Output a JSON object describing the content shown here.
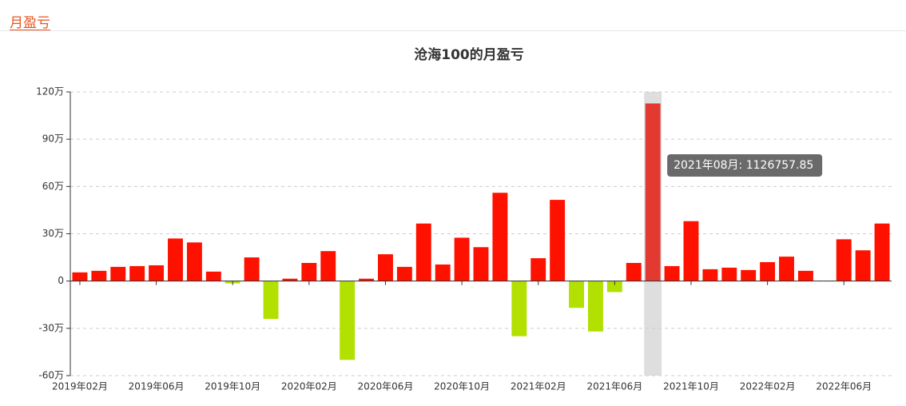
{
  "header": {
    "tab": "月盈亏"
  },
  "chart_data": {
    "type": "bar",
    "title": "沧海100的月盈亏",
    "categories": [
      "2019年02月",
      null,
      null,
      null,
      "2019年06月",
      null,
      null,
      null,
      "2019年10月",
      null,
      null,
      null,
      "2020年02月",
      null,
      null,
      null,
      "2020年06月",
      null,
      null,
      null,
      "2020年10月",
      null,
      null,
      null,
      "2021年02月",
      null,
      null,
      null,
      "2021年06月",
      null,
      null,
      null,
      "2021年10月",
      null,
      null,
      null,
      "2022年02月",
      null,
      null,
      null,
      "2022年06月",
      null,
      null
    ],
    "values": [
      55000,
      65000,
      90000,
      95000,
      100000,
      270000,
      245000,
      60000,
      -15000,
      150000,
      -240000,
      15000,
      115000,
      190000,
      -500000,
      15000,
      170000,
      90000,
      365000,
      105000,
      275000,
      215000,
      560000,
      -350000,
      145000,
      515000,
      -170000,
      -320000,
      -70000,
      115000,
      1126757.85,
      95000,
      380000,
      75000,
      85000,
      70000,
      120000,
      155000,
      65000,
      0,
      265000,
      195000,
      365000
    ],
    "color_positive": "#ff1100",
    "color_negative": "#b2e000",
    "color_highlight": "#e23a30",
    "highlight_index": 30,
    "tooltip": "2021年08月: 1126757.85",
    "ylim": [
      -600000,
      1200000
    ],
    "yticks": [
      {
        "value": -600000,
        "label": "-60万"
      },
      {
        "value": -300000,
        "label": "-30万"
      },
      {
        "value": 0,
        "label": "0"
      },
      {
        "value": 300000,
        "label": "30万"
      },
      {
        "value": 600000,
        "label": "60万"
      },
      {
        "value": 900000,
        "label": "90万"
      },
      {
        "value": 1200000,
        "label": "120万"
      }
    ],
    "grid": true
  }
}
